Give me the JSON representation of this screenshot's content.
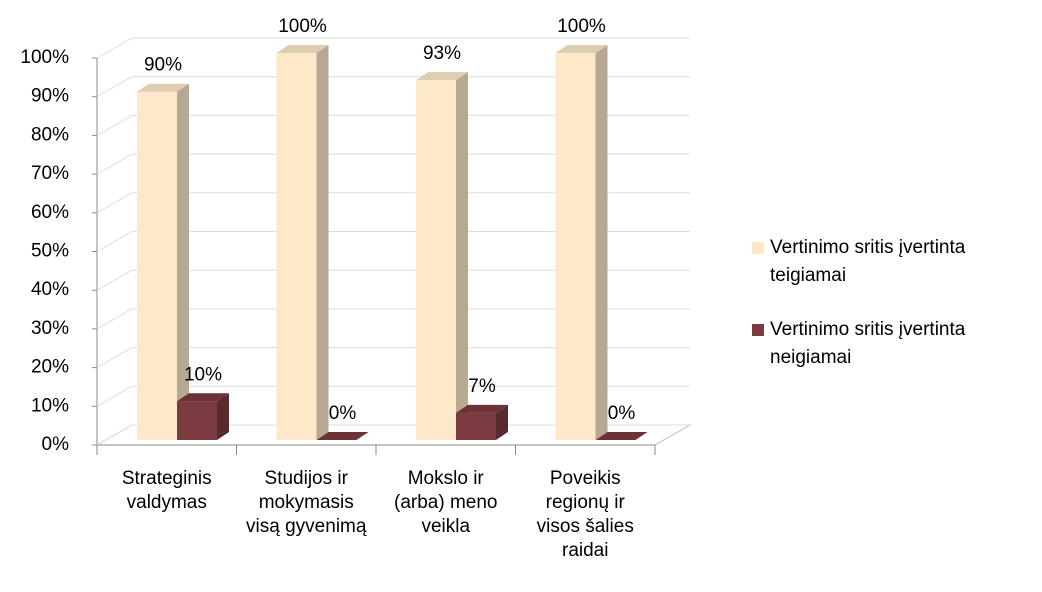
{
  "chart_data": {
    "type": "bar3d",
    "categories": [
      "Strateginis valdymas",
      "Studijos ir mokymasis visą gyvenimą",
      "Mokslo ir (arba) meno veikla",
      "Poveikis regionų ir visos šalies raidai"
    ],
    "series": [
      {
        "name": "Vertinimo sritis įvertinta teigiamai",
        "color": "#fde9c9",
        "values": [
          90,
          100,
          93,
          100
        ],
        "value_labels": [
          "90%",
          "100%",
          "93%",
          "100%"
        ]
      },
      {
        "name": "Vertinimo sritis įvertinta neigiamai",
        "color": "#7b3a3f",
        "values": [
          10,
          0,
          7,
          0
        ],
        "value_labels": [
          "10%",
          "0%",
          "7%",
          "0%"
        ]
      }
    ],
    "ylim": [
      0,
      100
    ],
    "yticks": [
      {
        "value": 0,
        "label": "0%"
      },
      {
        "value": 10,
        "label": "10%"
      },
      {
        "value": 20,
        "label": "20%"
      },
      {
        "value": 30,
        "label": "30%"
      },
      {
        "value": 40,
        "label": "40%"
      },
      {
        "value": 50,
        "label": "50%"
      },
      {
        "value": 60,
        "label": "60%"
      },
      {
        "value": 70,
        "label": "70%"
      },
      {
        "value": 80,
        "label": "80%"
      },
      {
        "value": 90,
        "label": "90%"
      },
      {
        "value": 100,
        "label": "100%"
      }
    ],
    "grid": true,
    "legend": "right"
  }
}
